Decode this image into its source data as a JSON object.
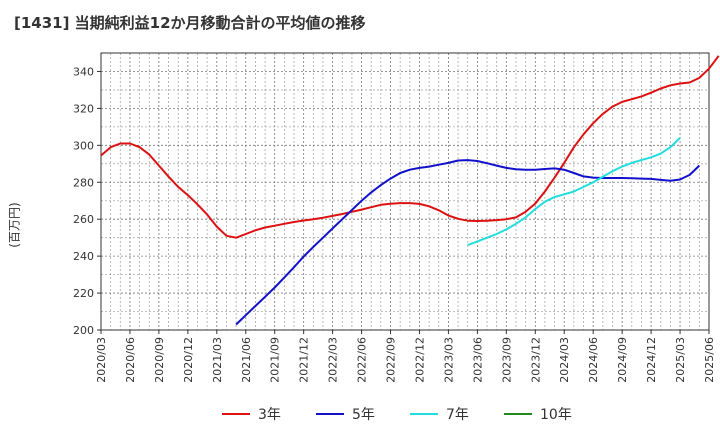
{
  "chart_data": {
    "type": "line",
    "title": "[1431]  当期純利益12か月移動合計の平均値の推移",
    "ylabel": "(百万円)",
    "xlabel": "",
    "ylim": [
      200,
      350
    ],
    "y_ticks": [
      "200",
      "220",
      "240",
      "260",
      "280",
      "300",
      "320",
      "340"
    ],
    "x_ticks": [
      "2020/03",
      "2020/06",
      "2020/09",
      "2020/12",
      "2021/03",
      "2021/06",
      "2021/09",
      "2021/12",
      "2022/03",
      "2022/06",
      "2022/09",
      "2022/12",
      "2023/03",
      "2023/06",
      "2023/09",
      "2023/12",
      "2024/03",
      "2024/06",
      "2024/09",
      "2024/12",
      "2025/03",
      "2025/06"
    ],
    "grid": true,
    "legend_position": "bottom",
    "series": [
      {
        "name": "3年",
        "color": "#dd1111",
        "start": "2020/03",
        "values": [
          294.5,
          299.0,
          301.0,
          301.0,
          299.0,
          295.0,
          289.0,
          283.0,
          277.5,
          273.0,
          268.0,
          262.5,
          256.0,
          251.0,
          250.0,
          252.0,
          254.0,
          255.5,
          256.5,
          257.5,
          258.5,
          259.3,
          260.0,
          260.8,
          261.8,
          262.8,
          264.0,
          265.2,
          266.5,
          267.8,
          268.4,
          268.7,
          268.7,
          268.3,
          267.0,
          264.8,
          262.0,
          260.2,
          259.2,
          259.0,
          259.2,
          259.5,
          260.0,
          261.0,
          264.0,
          268.5,
          275.0,
          282.5,
          290.5,
          299.0,
          306.0,
          312.0,
          317.0,
          321.0,
          323.5,
          325.0,
          326.5,
          328.5,
          330.8,
          332.5,
          333.5,
          334.0,
          336.5,
          341.5,
          348.5
        ]
      },
      {
        "name": "5年",
        "color": "#1111cc",
        "start": "2021/05",
        "values": [
          203.0,
          208.0,
          213.0,
          218.0,
          223.0,
          228.5,
          234.0,
          239.8,
          245.0,
          250.0,
          255.0,
          260.0,
          265.0,
          270.0,
          274.5,
          278.5,
          282.0,
          285.0,
          286.8,
          287.8,
          288.5,
          289.5,
          290.5,
          291.8,
          292.0,
          291.5,
          290.3,
          289.0,
          287.8,
          287.0,
          286.8,
          286.8,
          287.2,
          287.5,
          286.8,
          285.0,
          283.2,
          282.5,
          282.3,
          282.3,
          282.3,
          282.2,
          282.0,
          281.8,
          281.3,
          280.8,
          281.5,
          284.0,
          289.0
        ]
      },
      {
        "name": "7年",
        "color": "#22dddd",
        "start": "2023/05",
        "values": [
          246.0,
          248.0,
          250.0,
          252.0,
          254.5,
          257.5,
          261.0,
          265.5,
          269.5,
          272.0,
          273.5,
          275.0,
          277.5,
          280.0,
          283.0,
          286.0,
          288.5,
          290.5,
          292.0,
          293.5,
          295.5,
          299.0,
          304.0
        ]
      },
      {
        "name": "10年",
        "color": "#228822",
        "start": "",
        "values": []
      }
    ]
  }
}
